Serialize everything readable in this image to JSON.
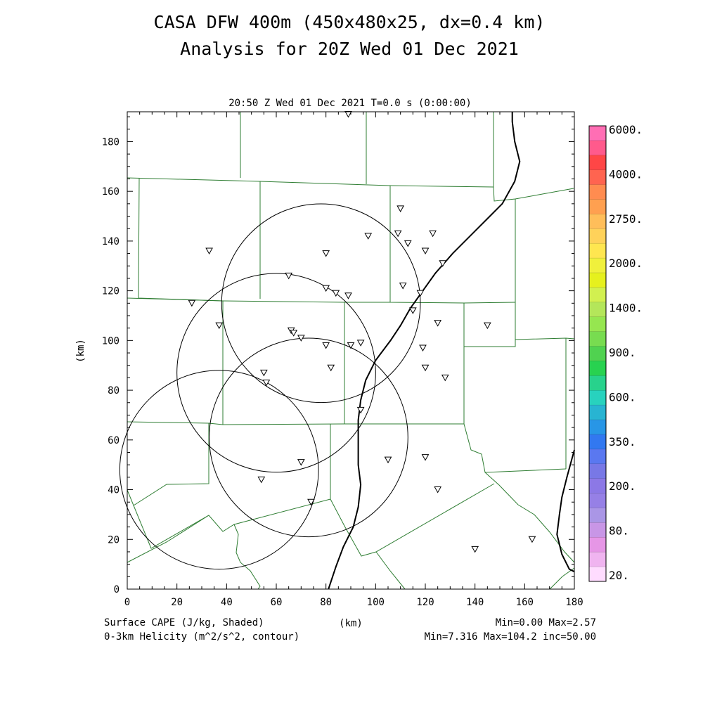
{
  "title_line1": "CASA DFW 400m (450x480x25, dx=0.4 km)",
  "title_line2": "Analysis for 20Z Wed 01 Dec 2021",
  "subtitle": "20:50 Z Wed 01 Dec 2021   T=0.0 s (0:00:00)",
  "x_axis": {
    "label": "(km)",
    "ticks": [
      "0",
      "20",
      "40",
      "60",
      "80",
      "100",
      "120",
      "140",
      "160",
      "180"
    ]
  },
  "y_axis": {
    "label": "(km)",
    "ticks": [
      "0",
      "20",
      "40",
      "60",
      "80",
      "100",
      "120",
      "140",
      "160",
      "180"
    ]
  },
  "footer": {
    "left1": "Surface CAPE (J/kg, Shaded)",
    "left2": "0-3km Helicity (m^2/s^2, contour)",
    "right1": "Min=0.00 Max=2.57",
    "right2": "Min=7.316 Max=104.2 inc=50.00"
  },
  "colorbar": {
    "labels": [
      "6000.",
      "4000.",
      "2750.",
      "2000.",
      "1400.",
      "900.",
      "600.",
      "350.",
      "200.",
      "80.",
      "20."
    ],
    "colors": [
      "#ff6eb4",
      "#ff5a8c",
      "#ff4646",
      "#ff6450",
      "#ff8c50",
      "#ffa050",
      "#ffbe5a",
      "#ffd25a",
      "#ffe650",
      "#f0f03c",
      "#e6f01e",
      "#d2f050",
      "#b4e65a",
      "#96e650",
      "#78dc50",
      "#50d250",
      "#28d250",
      "#28d28c",
      "#28d2be",
      "#28b4d2",
      "#2896e6",
      "#3278f0",
      "#5a78f0",
      "#7878e6",
      "#8c78e6",
      "#9680e6",
      "#aa96e6",
      "#c896e6",
      "#e696e6",
      "#f0b4f0",
      "#ffdcff"
    ]
  },
  "chart_data": {
    "type": "map",
    "xlim": [
      0,
      180
    ],
    "ylim": [
      0,
      192
    ],
    "radar_rings": [
      {
        "cx": 78,
        "cy": 115,
        "r": 40
      },
      {
        "cx": 60,
        "cy": 87,
        "r": 40
      },
      {
        "cx": 37,
        "cy": 48,
        "r": 40
      },
      {
        "cx": 73,
        "cy": 61,
        "r": 40
      }
    ],
    "stations": [
      [
        89,
        191
      ],
      [
        110,
        153
      ],
      [
        33,
        136
      ],
      [
        97,
        142
      ],
      [
        109,
        143
      ],
      [
        113,
        139
      ],
      [
        120,
        136
      ],
      [
        123,
        143
      ],
      [
        127,
        131
      ],
      [
        80,
        135
      ],
      [
        65,
        126
      ],
      [
        80,
        121
      ],
      [
        84,
        119
      ],
      [
        89,
        118
      ],
      [
        111,
        122
      ],
      [
        118,
        119
      ],
      [
        26,
        115
      ],
      [
        37,
        106
      ],
      [
        66,
        104
      ],
      [
        67,
        103
      ],
      [
        70,
        101
      ],
      [
        115,
        112
      ],
      [
        125,
        107
      ],
      [
        145,
        106
      ],
      [
        80,
        98
      ],
      [
        90,
        98
      ],
      [
        94,
        99
      ],
      [
        119,
        97
      ],
      [
        82,
        89
      ],
      [
        120,
        89
      ],
      [
        128,
        85
      ],
      [
        55,
        87
      ],
      [
        56,
        83
      ],
      [
        94,
        72
      ],
      [
        70,
        51
      ],
      [
        105,
        52
      ],
      [
        120,
        53
      ],
      [
        54,
        44
      ],
      [
        125,
        40
      ],
      [
        74,
        35
      ],
      [
        140,
        16
      ],
      [
        163,
        20
      ]
    ],
    "contours": [
      [
        [
          81,
          0
        ],
        [
          84,
          9
        ],
        [
          87,
          17
        ],
        [
          91,
          25
        ],
        [
          93,
          33
        ],
        [
          94,
          42
        ],
        [
          93,
          50
        ],
        [
          93,
          58
        ],
        [
          93,
          68
        ],
        [
          94,
          76
        ],
        [
          96,
          84
        ],
        [
          100,
          92
        ],
        [
          106,
          100
        ],
        [
          110,
          106
        ],
        [
          114,
          113
        ],
        [
          119,
          120
        ],
        [
          124,
          127
        ],
        [
          131,
          135
        ],
        [
          139,
          143
        ],
        [
          146,
          150
        ],
        [
          151,
          155
        ],
        [
          156,
          164
        ],
        [
          158,
          172
        ],
        [
          156,
          180
        ],
        [
          155,
          188
        ],
        [
          155,
          192
        ]
      ],
      [
        [
          180,
          56
        ],
        [
          177,
          45
        ],
        [
          175,
          37
        ],
        [
          174,
          30
        ],
        [
          173,
          22
        ],
        [
          175,
          14
        ],
        [
          178,
          8
        ],
        [
          180,
          7
        ]
      ]
    ]
  }
}
